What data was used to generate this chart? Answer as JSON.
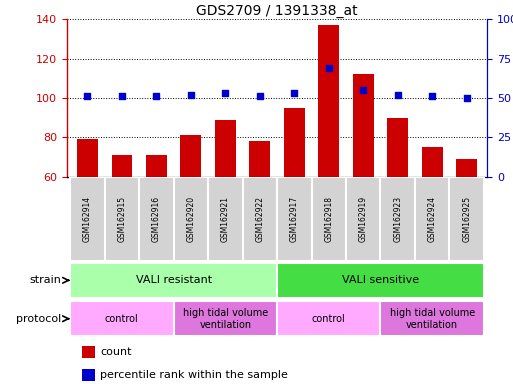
{
  "title": "GDS2709 / 1391338_at",
  "samples": [
    "GSM162914",
    "GSM162915",
    "GSM162916",
    "GSM162920",
    "GSM162921",
    "GSM162922",
    "GSM162917",
    "GSM162918",
    "GSM162919",
    "GSM162923",
    "GSM162924",
    "GSM162925"
  ],
  "counts": [
    79,
    71,
    71,
    81,
    89,
    78,
    95,
    137,
    112,
    90,
    75,
    69
  ],
  "percentile_ranks": [
    51,
    51,
    51,
    52,
    53,
    51,
    53,
    69,
    55,
    52,
    51,
    50
  ],
  "ylim_left": [
    60,
    140
  ],
  "ylim_right": [
    0,
    100
  ],
  "yticks_left": [
    60,
    80,
    100,
    120,
    140
  ],
  "yticks_right": [
    0,
    25,
    50,
    75,
    100
  ],
  "ytick_labels_right": [
    "0",
    "25",
    "50",
    "75",
    "100%"
  ],
  "bar_color": "#cc0000",
  "dot_color": "#0000cc",
  "xticklabel_bg": "#d3d3d3",
  "strain_groups": [
    {
      "label": "VALI resistant",
      "start": 0,
      "end": 6,
      "color": "#aaffaa"
    },
    {
      "label": "VALI sensitive",
      "start": 6,
      "end": 12,
      "color": "#44dd44"
    }
  ],
  "protocol_groups": [
    {
      "label": "control",
      "start": 0,
      "end": 3,
      "color": "#ffaaff"
    },
    {
      "label": "high tidal volume\nventilation",
      "start": 3,
      "end": 6,
      "color": "#dd77dd"
    },
    {
      "label": "control",
      "start": 6,
      "end": 9,
      "color": "#ffaaff"
    },
    {
      "label": "high tidal volume\nventilation",
      "start": 9,
      "end": 12,
      "color": "#dd77dd"
    }
  ],
  "strain_label": "strain",
  "protocol_label": "protocol",
  "legend_count_label": "count",
  "legend_percentile_label": "percentile rank within the sample",
  "background_color": "#ffffff",
  "tick_label_color_left": "#cc0000",
  "tick_label_color_right": "#0000cc",
  "grid_color": "#000000",
  "bar_width": 0.6,
  "dot_size": 18
}
